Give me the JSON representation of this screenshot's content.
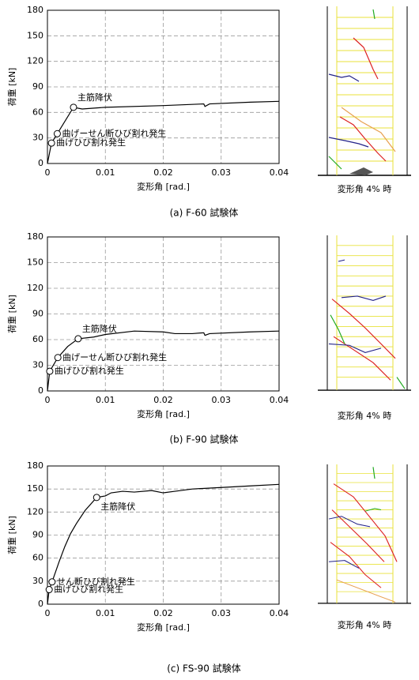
{
  "chart_data": [
    {
      "type": "line",
      "title": "(a) F-60 試験体",
      "xlabel": "変形角 [rad.]",
      "ylabel": "荷重 [kN]",
      "image_caption": "変形角 4% 時",
      "x": [
        0,
        0.0007,
        0.0017,
        0.0045,
        0.006,
        0.01,
        0.02,
        0.027,
        0.0272,
        0.028,
        0.035,
        0.04
      ],
      "values": [
        0,
        24,
        35,
        66,
        64,
        66,
        68,
        70,
        67,
        70,
        72,
        73
      ],
      "color": "#000000",
      "xlim": [
        0,
        0.04
      ],
      "ylim": [
        0,
        180
      ],
      "xticks": [
        0,
        0.01,
        0.02,
        0.03,
        0.04
      ],
      "yticks": [
        0,
        30,
        60,
        90,
        120,
        150,
        180
      ],
      "grid": true,
      "annotations": [
        {
          "text": "主筋降伏",
          "x": 0.0045,
          "y": 66
        },
        {
          "text": "曲げーせん断ひび割れ発生",
          "x": 0.0017,
          "y": 35
        },
        {
          "text": "曲げひび割れ発生",
          "x": 0.0007,
          "y": 24
        }
      ]
    },
    {
      "type": "line",
      "title": "(b) F-90 試験体",
      "xlabel": "変形角 [rad.]",
      "ylabel": "荷重 [kN]",
      "image_caption": "変形角 4% 時",
      "x": [
        0,
        0.0004,
        0.0018,
        0.0035,
        0.0053,
        0.008,
        0.01,
        0.015,
        0.02,
        0.022,
        0.025,
        0.027,
        0.0272,
        0.028,
        0.035,
        0.04
      ],
      "values": [
        0,
        23,
        39,
        52,
        61,
        63,
        66,
        70,
        69,
        67,
        67,
        68,
        65,
        67,
        69,
        70
      ],
      "color": "#000000",
      "xlim": [
        0,
        0.04
      ],
      "ylim": [
        0,
        180
      ],
      "xticks": [
        0,
        0.01,
        0.02,
        0.03,
        0.04
      ],
      "yticks": [
        0,
        30,
        60,
        90,
        120,
        150,
        180
      ],
      "grid": true,
      "annotations": [
        {
          "text": "主筋降伏",
          "x": 0.0053,
          "y": 61
        },
        {
          "text": "曲げーせん断ひび割れ発生",
          "x": 0.0018,
          "y": 39
        },
        {
          "text": "曲げひび割れ発生",
          "x": 0.0004,
          "y": 23
        }
      ]
    },
    {
      "type": "line",
      "title": "(c) FS-90 試験体",
      "xlabel": "変形角  [rad.]",
      "ylabel": "荷重 [kN]",
      "image_caption": "変形角 4% 時",
      "x": [
        0,
        0.0003,
        0.0008,
        0.002,
        0.003,
        0.004,
        0.005,
        0.0065,
        0.0085,
        0.01,
        0.011,
        0.013,
        0.015,
        0.018,
        0.02,
        0.022,
        0.025,
        0.03,
        0.035,
        0.04
      ],
      "values": [
        0,
        19,
        29,
        55,
        75,
        92,
        105,
        122,
        139,
        141,
        145,
        147,
        146,
        148,
        145,
        147,
        150,
        152,
        154,
        156
      ],
      "color": "#000000",
      "xlim": [
        0,
        0.04
      ],
      "ylim": [
        0,
        180
      ],
      "xticks": [
        0,
        0.01,
        0.02,
        0.03,
        0.04
      ],
      "yticks": [
        0,
        30,
        60,
        90,
        120,
        150,
        180
      ],
      "grid": true,
      "annotations": [
        {
          "text": "主筋降伏",
          "x": 0.0085,
          "y": 139
        },
        {
          "text": "せん断ひび割れ発生",
          "x": 0.0008,
          "y": 29
        },
        {
          "text": "曲げひび割れ発生",
          "x": 0.0003,
          "y": 19
        }
      ]
    }
  ]
}
